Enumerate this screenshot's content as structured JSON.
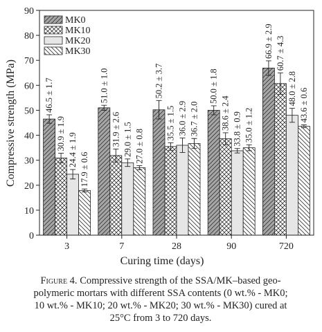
{
  "chart_data": {
    "type": "bar",
    "xlabel": "Curing time (days)",
    "ylabel": "Compressive strength (MPa)",
    "categories": [
      "3",
      "7",
      "28",
      "90",
      "720"
    ],
    "series": [
      {
        "name": "MK0",
        "color": "#a6a6a6",
        "hatch": "/",
        "values": [
          46.5,
          51.0,
          50.2,
          50.0,
          66.9
        ],
        "errors": [
          1.7,
          1.0,
          3.7,
          1.8,
          2.9
        ],
        "value_labels": [
          "46.5 ± 1.7",
          "51.0 ± 1.0",
          "50.2 ± 3.7",
          "50.0 ± 1.8",
          "66.9 ± 2.9"
        ]
      },
      {
        "name": "MK10",
        "color": "#ffffff",
        "hatch": "x",
        "values": [
          30.9,
          31.9,
          35.5,
          38.6,
          60.7
        ],
        "errors": [
          1.9,
          2.6,
          1.5,
          2.4,
          4.3
        ],
        "value_labels": [
          "30.9 ± 1.9",
          "31.9 ± 2.6",
          "35.5 ± 1.5",
          "38.6 ± 2.4",
          "60.7 ± 4.3"
        ]
      },
      {
        "name": "MK20",
        "color": "#e6e6e6",
        "values": [
          24.4,
          29.0,
          36.0,
          33.8,
          48.0
        ],
        "errors": [
          1.9,
          1.5,
          2.9,
          0.9,
          2.8
        ],
        "value_labels": [
          "24.4 ± 1.9",
          "29.0 ± 1.5",
          "36.0 ± 2.9",
          "33.8 ± 0.9",
          "48.0 ± 2.8"
        ]
      },
      {
        "name": "MK30",
        "color": "#ffffff",
        "hatch": "\\",
        "values": [
          17.9,
          27.0,
          36.7,
          35.0,
          43.6
        ],
        "errors": [
          0.6,
          0.8,
          2.0,
          1.2,
          0.6
        ],
        "value_labels": [
          "17.9 ± 0.6",
          "27.0 ± 0.8",
          "36.7 ± 2.0",
          "35.0 ± 1.2",
          "43.6 ± 0.6"
        ]
      }
    ],
    "ylim": [
      0,
      90
    ],
    "yticks": [
      0,
      10,
      20,
      30,
      40,
      50,
      60,
      70,
      80,
      90
    ],
    "legend": "upper left",
    "caption": {
      "label": "Figure 4.",
      "lines": [
        " Compressive strength of the SSA/MK–based geo-",
        "polymeric mortars with different SSA contents (0 wt.% - MK0;",
        "10 wt.% - MK10; 20 wt.% - MK20; 30 wt.% - MK30) cured at",
        "25°C from 3 to 720 days."
      ]
    }
  }
}
